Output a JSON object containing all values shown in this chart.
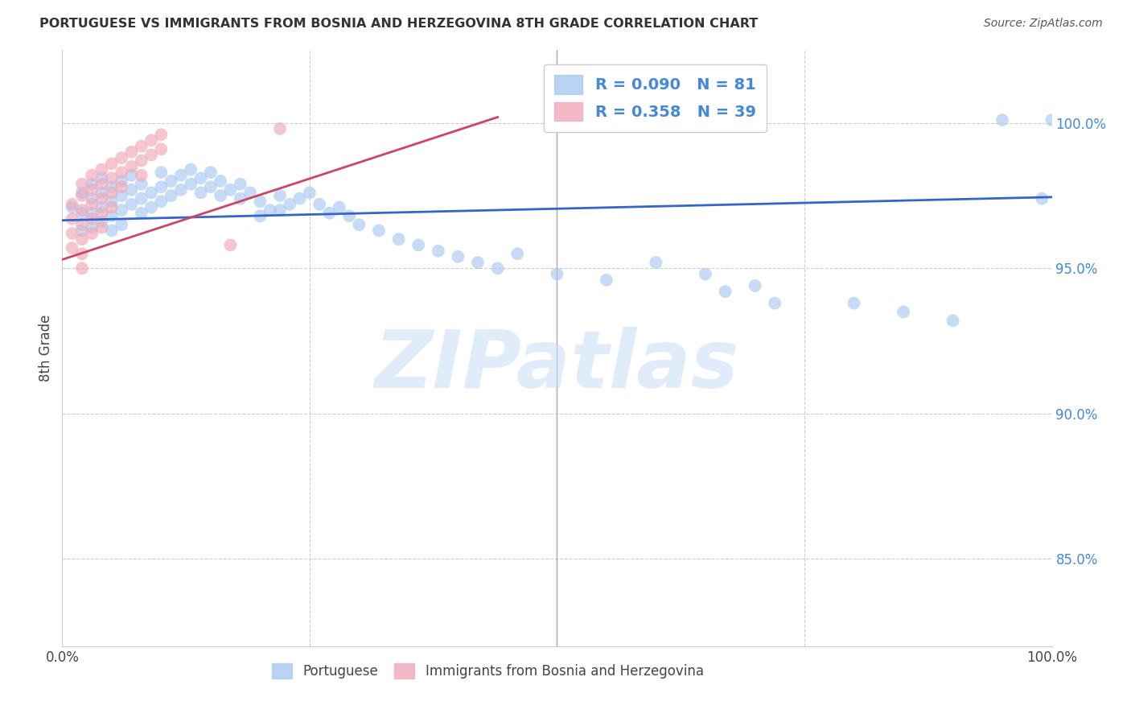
{
  "title": "PORTUGUESE VS IMMIGRANTS FROM BOSNIA AND HERZEGOVINA 8TH GRADE CORRELATION CHART",
  "source": "Source: ZipAtlas.com",
  "ylabel": "8th Grade",
  "ytick_labels": [
    "100.0%",
    "95.0%",
    "90.0%",
    "85.0%"
  ],
  "ytick_positions": [
    1.0,
    0.95,
    0.9,
    0.85
  ],
  "xlim": [
    0.0,
    1.0
  ],
  "ylim": [
    0.82,
    1.025
  ],
  "blue_color": "#A8C8F0",
  "pink_color": "#F0A8B8",
  "blue_line_color": "#3366CC",
  "pink_line_color": "#CC4466",
  "watermark": "ZIPatlas",
  "blue_scatter_x": [
    0.01,
    0.02,
    0.02,
    0.02,
    0.03,
    0.03,
    0.03,
    0.03,
    0.04,
    0.04,
    0.04,
    0.04,
    0.05,
    0.05,
    0.05,
    0.05,
    0.06,
    0.06,
    0.06,
    0.06,
    0.07,
    0.07,
    0.07,
    0.08,
    0.08,
    0.08,
    0.09,
    0.09,
    0.1,
    0.1,
    0.1,
    0.11,
    0.11,
    0.12,
    0.12,
    0.13,
    0.13,
    0.14,
    0.14,
    0.15,
    0.15,
    0.16,
    0.16,
    0.17,
    0.18,
    0.18,
    0.19,
    0.2,
    0.2,
    0.21,
    0.22,
    0.22,
    0.23,
    0.24,
    0.25,
    0.26,
    0.27,
    0.28,
    0.29,
    0.3,
    0.32,
    0.34,
    0.36,
    0.38,
    0.4,
    0.42,
    0.44,
    0.46,
    0.5,
    0.55,
    0.6,
    0.65,
    0.7,
    0.8,
    0.85,
    0.9,
    0.95,
    0.99,
    1.0,
    0.67,
    0.72
  ],
  "blue_scatter_y": [
    0.971,
    0.976,
    0.969,
    0.963,
    0.979,
    0.974,
    0.969,
    0.964,
    0.981,
    0.976,
    0.971,
    0.966,
    0.978,
    0.973,
    0.968,
    0.963,
    0.98,
    0.975,
    0.97,
    0.965,
    0.982,
    0.977,
    0.972,
    0.979,
    0.974,
    0.969,
    0.976,
    0.971,
    0.983,
    0.978,
    0.973,
    0.98,
    0.975,
    0.982,
    0.977,
    0.984,
    0.979,
    0.981,
    0.976,
    0.983,
    0.978,
    0.98,
    0.975,
    0.977,
    0.979,
    0.974,
    0.976,
    0.973,
    0.968,
    0.97,
    0.975,
    0.97,
    0.972,
    0.974,
    0.976,
    0.972,
    0.969,
    0.971,
    0.968,
    0.965,
    0.963,
    0.96,
    0.958,
    0.956,
    0.954,
    0.952,
    0.95,
    0.955,
    0.948,
    0.946,
    0.952,
    0.948,
    0.944,
    0.938,
    0.935,
    0.932,
    1.001,
    0.974,
    1.001,
    0.942,
    0.938
  ],
  "pink_scatter_x": [
    0.01,
    0.01,
    0.01,
    0.01,
    0.02,
    0.02,
    0.02,
    0.02,
    0.02,
    0.02,
    0.02,
    0.03,
    0.03,
    0.03,
    0.03,
    0.03,
    0.04,
    0.04,
    0.04,
    0.04,
    0.04,
    0.05,
    0.05,
    0.05,
    0.05,
    0.06,
    0.06,
    0.06,
    0.07,
    0.07,
    0.08,
    0.08,
    0.08,
    0.09,
    0.09,
    0.1,
    0.1,
    0.17,
    0.22
  ],
  "pink_scatter_y": [
    0.972,
    0.967,
    0.962,
    0.957,
    0.979,
    0.975,
    0.97,
    0.965,
    0.96,
    0.955,
    0.95,
    0.982,
    0.977,
    0.972,
    0.967,
    0.962,
    0.984,
    0.979,
    0.974,
    0.969,
    0.964,
    0.986,
    0.981,
    0.976,
    0.971,
    0.988,
    0.983,
    0.978,
    0.99,
    0.985,
    0.992,
    0.987,
    0.982,
    0.994,
    0.989,
    0.996,
    0.991,
    0.958,
    0.998
  ],
  "blue_line_x": [
    0.0,
    1.0
  ],
  "blue_line_y": [
    0.9665,
    0.9745
  ],
  "pink_line_x": [
    0.0,
    0.44
  ],
  "pink_line_y": [
    0.953,
    1.002
  ]
}
